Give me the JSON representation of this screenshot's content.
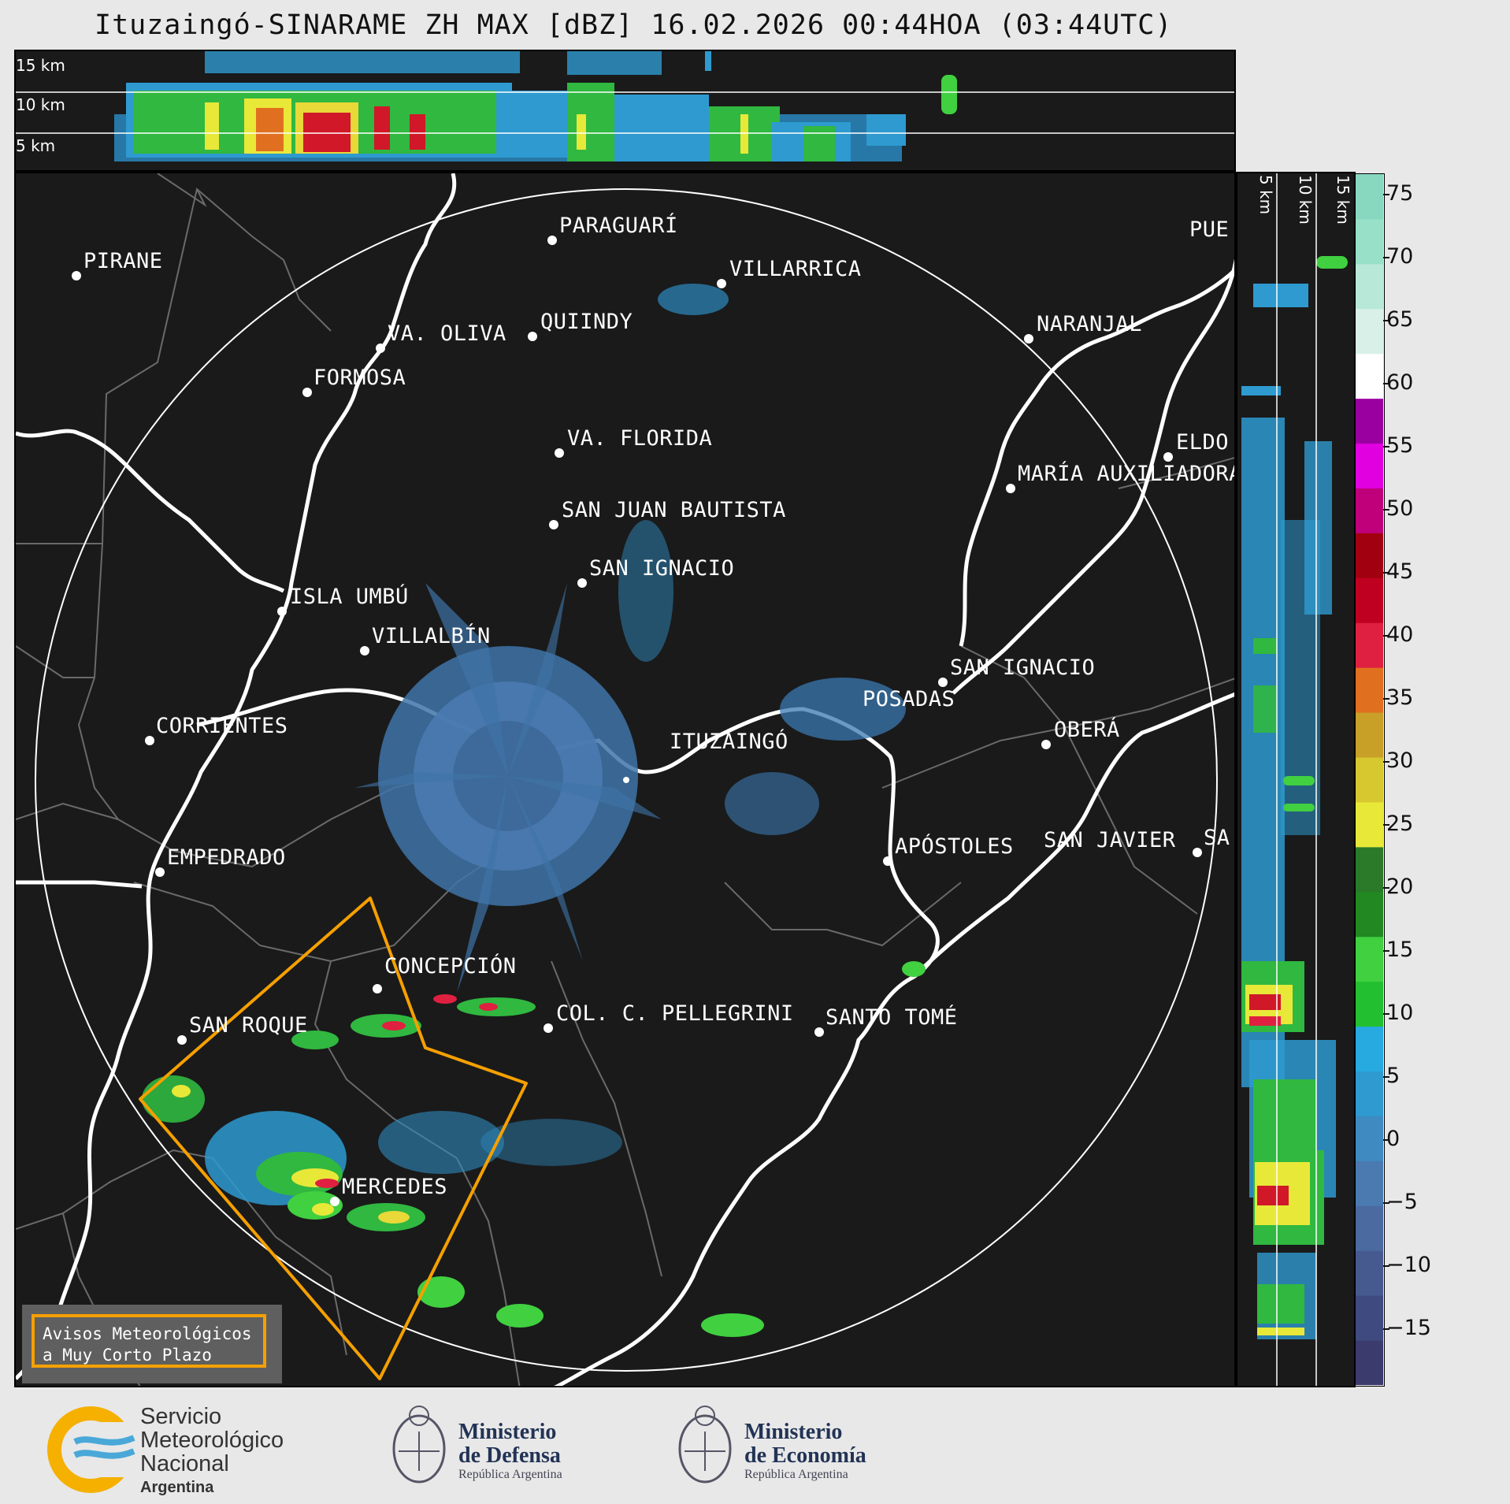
{
  "title": "Ituzaingó-SINARAME ZH MAX [dBZ] 16.02.2026 00:44HOA (03:44UTC)",
  "top_panel": {
    "height_labels": [
      "15 km",
      "10 km",
      "5 km"
    ]
  },
  "side_panel": {
    "height_labels": [
      "5 km",
      "10 km",
      "15 km"
    ]
  },
  "colorbar": {
    "unit": "dBZ",
    "ticks": [
      "75",
      "70",
      "65",
      "60",
      "55",
      "50",
      "45",
      "40",
      "35",
      "30",
      "25",
      "20",
      "15",
      "10",
      "5",
      "0",
      "−5",
      "−10",
      "−15"
    ],
    "colors": [
      "#3b3b6e",
      "#3f4a80",
      "#465a90",
      "#4a6aa0",
      "#4a7ab0",
      "#3f8ac0",
      "#2e9ad0",
      "#26aae0",
      "#22c030",
      "#40d040",
      "#228822",
      "#2a7a2a",
      "#e8e838",
      "#d8c830",
      "#c8a028",
      "#e07020",
      "#e02040",
      "#c00020",
      "#a00010",
      "#c0007a",
      "#e000e0",
      "#9a00a0",
      "#ffffff",
      "#d8f0e8",
      "#b8e8d8",
      "#98e0c8",
      "#88d8c0"
    ],
    "range": [
      -20,
      77
    ]
  },
  "map": {
    "cities": [
      {
        "name": "PIRANE"
      },
      {
        "name": "PARAGUARÍ"
      },
      {
        "name": "VILLARRICA"
      },
      {
        "name": "QUIINDY"
      },
      {
        "name": "VA. OLIVA"
      },
      {
        "name": "FORMOSA"
      },
      {
        "name": "NARANJAL"
      },
      {
        "name": "PUE"
      },
      {
        "name": "VA. FLORIDA"
      },
      {
        "name": "ELDO"
      },
      {
        "name": "MARÍA AUXILIADORA"
      },
      {
        "name": "SAN JUAN BAUTISTA"
      },
      {
        "name": "SAN IGNACIO"
      },
      {
        "name": "ISLA UMBÚ"
      },
      {
        "name": "VILLALBÍN"
      },
      {
        "name": "SAN IGNACIO"
      },
      {
        "name": "POSADAS"
      },
      {
        "name": "CORRIENTES"
      },
      {
        "name": "ITUZAINGÓ"
      },
      {
        "name": "OBERÁ"
      },
      {
        "name": "EMPEDRADO"
      },
      {
        "name": "APÓSTOLES"
      },
      {
        "name": "SAN JAVIER"
      },
      {
        "name": "SA"
      },
      {
        "name": "CONCEPCIÓN"
      },
      {
        "name": "COL. C. PELLEGRINI"
      },
      {
        "name": "SANTO TOMÉ"
      },
      {
        "name": "SAN ROQUE"
      },
      {
        "name": "MERCEDES"
      }
    ],
    "warning_color": "#f5a000"
  },
  "legend": {
    "line1": "Avisos Meteorológicos",
    "line2": "a Muy Corto Plazo"
  },
  "footer": {
    "smn": {
      "line1": "Servicio",
      "line2": "Meteorológico",
      "line3": "Nacional",
      "line4": "Argentina"
    },
    "defensa": {
      "line1": "Ministerio",
      "line2": "de Defensa",
      "line3": "República Argentina"
    },
    "economia": {
      "line1": "Ministerio",
      "line2": "de Economía",
      "line3": "República Argentina"
    }
  }
}
